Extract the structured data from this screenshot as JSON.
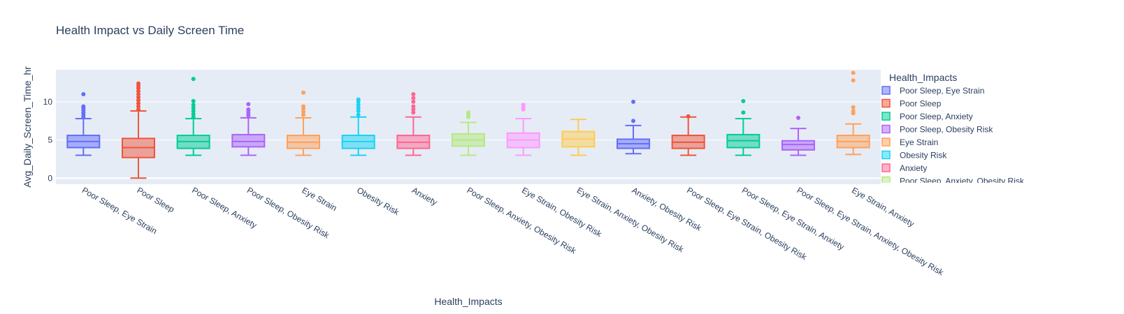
{
  "chart_data": {
    "type": "box",
    "title": "Health Impact vs Daily Screen Time",
    "xlabel": "Health_Impacts",
    "ylabel": "Avg_Daily_Screen_Time_hr",
    "ylim": [
      -0.8,
      14.2
    ],
    "yticks": [
      0,
      5,
      10
    ],
    "grid": true,
    "legend": {
      "title": "Health_Impacts",
      "placement": "right"
    },
    "categories": [
      "Poor Sleep, Eye Strain",
      "Poor Sleep",
      "Poor Sleep, Anxiety",
      "Poor Sleep, Obesity Risk",
      "Eye Strain",
      "Obesity Risk",
      "Anxiety",
      "Poor Sleep, Anxiety, Obesity Risk",
      "Eye Strain, Obesity Risk",
      "Eye Strain, Anxiety, Obesity Risk",
      "Anxiety, Obesity Risk",
      "Poor Sleep, Eye Strain, Obesity Risk",
      "Poor Sleep, Eye Strain, Anxiety",
      "Poor Sleep, Eye Strain, Anxiety, Obesity Risk",
      "Eye Strain, Anxiety"
    ],
    "series": [
      {
        "name": "Poor Sleep, Eye Strain",
        "color": "#636efa",
        "min": 3.0,
        "q1": 4.0,
        "median": 4.8,
        "q3": 5.6,
        "max": 7.8,
        "outliers": [
          8.0,
          8.3,
          8.6,
          8.9,
          9.2,
          9.4,
          11.0
        ]
      },
      {
        "name": "Poor Sleep",
        "color": "#ef553b",
        "min": 0.0,
        "q1": 2.7,
        "median": 4.0,
        "q3": 5.2,
        "max": 8.8,
        "outliers": [
          9.0,
          9.4,
          9.8,
          10.2,
          10.6,
          11.0,
          11.4,
          11.8,
          12.1,
          12.4
        ]
      },
      {
        "name": "Poor Sleep, Anxiety",
        "color": "#00cc96",
        "min": 3.0,
        "q1": 3.9,
        "median": 4.8,
        "q3": 5.6,
        "max": 7.8,
        "outliers": [
          8.0,
          8.4,
          8.8,
          9.2,
          9.6,
          10.1,
          13.0
        ]
      },
      {
        "name": "Poor Sleep, Obesity Risk",
        "color": "#ab63fa",
        "min": 3.0,
        "q1": 4.1,
        "median": 4.8,
        "q3": 5.7,
        "max": 7.9,
        "outliers": [
          8.2,
          8.5,
          8.8,
          9.0,
          9.7
        ]
      },
      {
        "name": "Eye Strain",
        "color": "#ffa15a",
        "min": 3.0,
        "q1": 3.9,
        "median": 4.7,
        "q3": 5.6,
        "max": 7.9,
        "outliers": [
          8.3,
          8.7,
          9.1,
          9.4,
          11.2
        ]
      },
      {
        "name": "Obesity Risk",
        "color": "#19d3f3",
        "min": 3.0,
        "q1": 3.9,
        "median": 4.8,
        "q3": 5.6,
        "max": 8.0,
        "outliers": [
          8.3,
          8.8,
          9.2,
          9.6,
          10.0,
          10.3
        ]
      },
      {
        "name": "Anxiety",
        "color": "#ff6692",
        "min": 3.0,
        "q1": 3.9,
        "median": 4.7,
        "q3": 5.6,
        "max": 8.0,
        "outliers": [
          8.6,
          9.0,
          9.4,
          10.0,
          10.5,
          11.0
        ]
      },
      {
        "name": "Poor Sleep, Anxiety, Obesity Risk",
        "color": "#b6e880",
        "min": 3.0,
        "q1": 4.2,
        "median": 5.0,
        "q3": 5.8,
        "max": 7.3,
        "outliers": [
          8.0,
          8.3,
          8.6
        ]
      },
      {
        "name": "Eye Strain, Obesity Risk",
        "color": "#ff97ff",
        "min": 3.0,
        "q1": 4.0,
        "median": 5.0,
        "q3": 5.9,
        "max": 7.8,
        "outliers": [
          9.0,
          9.3,
          9.6
        ]
      },
      {
        "name": "Eye Strain, Anxiety, Obesity Risk",
        "color": "#fecb52",
        "min": 3.0,
        "q1": 4.1,
        "median": 5.1,
        "q3": 6.1,
        "max": 7.7,
        "outliers": []
      },
      {
        "name": "Anxiety, Obesity Risk",
        "color": "#636efa",
        "min": 3.2,
        "q1": 3.9,
        "median": 4.5,
        "q3": 5.1,
        "max": 6.9,
        "outliers": [
          7.5,
          10.0
        ]
      },
      {
        "name": "Poor Sleep, Eye Strain, Obesity Risk",
        "color": "#ef553b",
        "min": 3.0,
        "q1": 3.9,
        "median": 4.7,
        "q3": 5.6,
        "max": 8.0,
        "outliers": [
          8.1
        ]
      },
      {
        "name": "Poor Sleep, Eye Strain, Anxiety",
        "color": "#00cc96",
        "min": 3.0,
        "q1": 4.0,
        "median": 4.9,
        "q3": 5.7,
        "max": 7.8,
        "outliers": [
          8.6,
          10.1
        ]
      },
      {
        "name": "Poor Sleep, Eye Strain, Anxiety, Obesity Risk",
        "color": "#ab63fa",
        "min": 3.0,
        "q1": 3.7,
        "median": 4.4,
        "q3": 4.9,
        "max": 6.5,
        "outliers": [
          7.9
        ]
      },
      {
        "name": "Eye Strain, Anxiety",
        "color": "#ffa15a",
        "min": 3.1,
        "q1": 4.0,
        "median": 4.8,
        "q3": 5.6,
        "max": 7.1,
        "outliers": [
          8.5,
          8.8,
          9.3,
          12.8,
          13.8
        ]
      }
    ]
  }
}
